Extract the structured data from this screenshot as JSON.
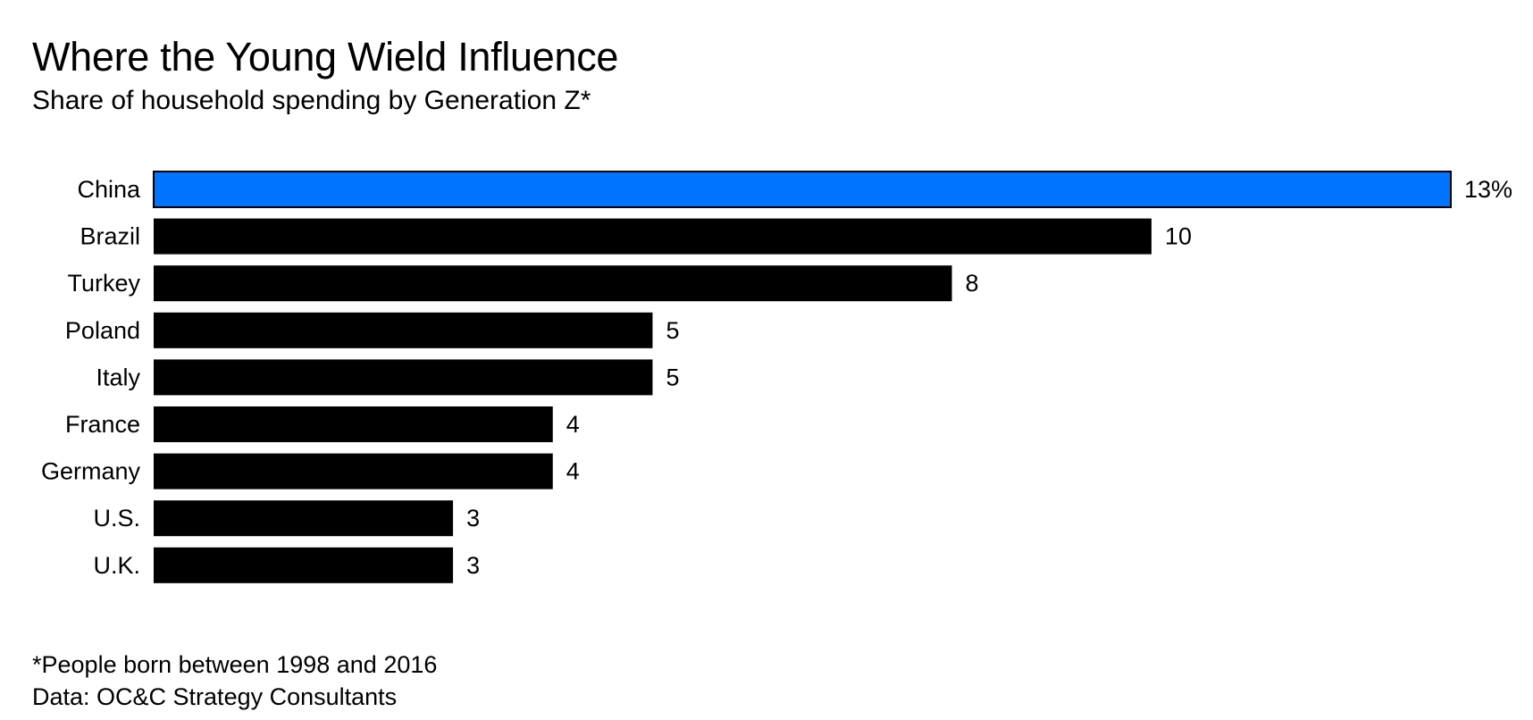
{
  "chart_data": {
    "type": "bar",
    "orientation": "horizontal",
    "title": "Where the Young Wield Influence",
    "subtitle": "Share of household spending by Generation Z*",
    "categories": [
      "China",
      "Brazil",
      "Turkey",
      "Poland",
      "Italy",
      "France",
      "Germany",
      "U.S.",
      "U.K."
    ],
    "values": [
      13,
      10,
      8,
      5,
      5,
      4,
      4,
      3,
      3
    ],
    "data_labels": [
      "13%",
      "10",
      "8",
      "5",
      "5",
      "4",
      "4",
      "3",
      "3"
    ],
    "highlight_category": "China",
    "xlim": [
      0,
      13
    ],
    "grid": false,
    "legend": "none",
    "colors": {
      "highlight": "#0073FF",
      "bar": "#000000"
    }
  },
  "footnotes": {
    "note": "*People born between 1998 and 2016",
    "source": "Data: OC&C Strategy Consultants"
  }
}
